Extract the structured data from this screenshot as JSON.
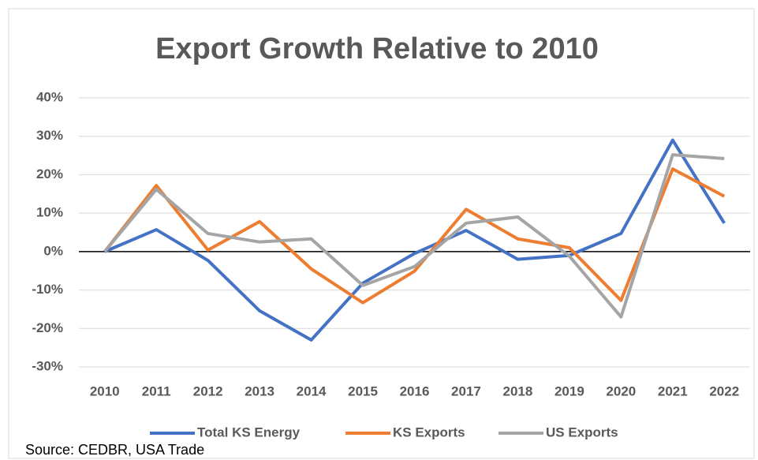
{
  "chart_data": {
    "type": "line",
    "title": "Export Growth Relative to 2010",
    "categories": [
      "2010",
      "2011",
      "2012",
      "2013",
      "2014",
      "2015",
      "2016",
      "2017",
      "2018",
      "2019",
      "2020",
      "2021",
      "2022"
    ],
    "series": [
      {
        "name": "Total KS Energy",
        "color": "#4472c4",
        "values": [
          0,
          5.7,
          -2.3,
          -15.4,
          -23,
          -8.2,
          -0.5,
          5.5,
          -2,
          -1,
          4.7,
          29,
          7.4
        ]
      },
      {
        "name": "KS Exports",
        "color": "#ed7d31",
        "values": [
          0,
          17.2,
          0.4,
          7.8,
          -4.5,
          -13.3,
          -5.1,
          11,
          3.3,
          1,
          -12.7,
          21.5,
          14.4
        ]
      },
      {
        "name": "US Exports",
        "color": "#a5a5a5",
        "values": [
          0,
          16.2,
          4.7,
          2.5,
          3.3,
          -8.8,
          -3.9,
          7.4,
          9,
          -1.2,
          -17,
          25.2,
          24.2
        ]
      }
    ],
    "ylim": [
      -30,
      40
    ],
    "yticks": [
      {
        "value": -30,
        "label": "-30%"
      },
      {
        "value": -20,
        "label": "-20%"
      },
      {
        "value": -10,
        "label": "-10%"
      },
      {
        "value": 0,
        "label": "0%"
      },
      {
        "value": 10,
        "label": "10%"
      },
      {
        "value": 20,
        "label": "20%"
      },
      {
        "value": 30,
        "label": "30%"
      },
      {
        "value": 40,
        "label": "40%"
      }
    ],
    "grid": true,
    "legend": "bottom",
    "source": "Source: CEDBR, USA Trade"
  }
}
